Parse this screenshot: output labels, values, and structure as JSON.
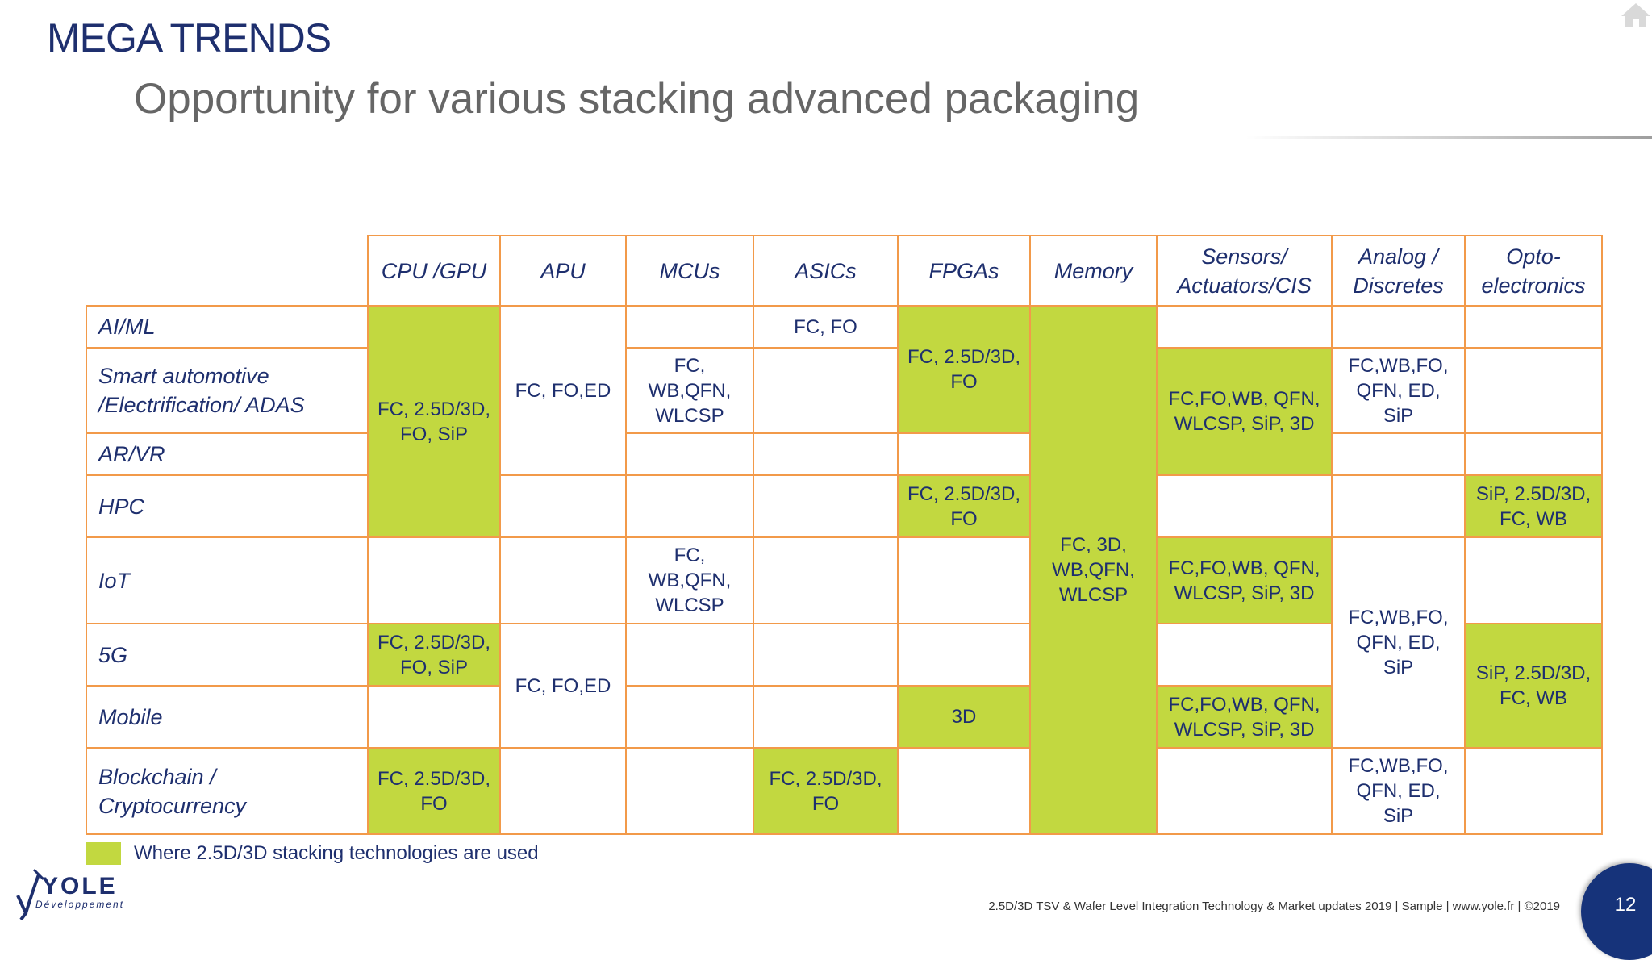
{
  "header": {
    "title": "MEGA TRENDS",
    "subtitle": "Opportunity for various stacking advanced packaging"
  },
  "table": {
    "columns": [
      "CPU /GPU",
      "APU",
      "MCUs",
      "ASICs",
      "FPGAs",
      "Memory",
      "Sensors/\nActuators/CIS",
      "Analog /\nDiscretes",
      "Opto-\nelectronics"
    ],
    "rows": [
      "AI/ML",
      "Smart automotive\n/Electrification/ ADAS",
      "AR/VR",
      "HPC",
      "IoT",
      "5G",
      "Mobile",
      "Blockchain / Cryptocurrency"
    ],
    "cells": [
      {
        "text": "FC, 2.5D/3D,\nFO, SiP",
        "stacking": true
      },
      {
        "text": "FC, FO,ED",
        "stacking": false
      },
      {
        "text": "FC, FO",
        "stacking": false
      },
      {
        "text": "FC, 2.5D/3D,\nFO",
        "stacking": true
      },
      {
        "text": "FC, 3D,\nWB,QFN,\nWLCSP",
        "stacking": true
      },
      {
        "text": "FC,\nWB,QFN,\nWLCSP",
        "stacking": false
      },
      {
        "text": "FC,FO,WB, QFN,\nWLCSP, SiP, 3D",
        "stacking": true
      },
      {
        "text": "FC,WB,FO,\nQFN, ED,\nSiP",
        "stacking": false
      },
      {
        "text": "FC, 2.5D/3D,\nFO",
        "stacking": true
      },
      {
        "text": "SiP, 2.5D/3D,\nFC, WB",
        "stacking": true
      },
      {
        "text": "FC,\nWB,QFN,\nWLCSP",
        "stacking": false
      },
      {
        "text": "FC,FO,WB, QFN,\nWLCSP, SiP, 3D",
        "stacking": true
      },
      {
        "text": "FC,WB,FO,\nQFN, ED,\nSiP",
        "stacking": false
      },
      {
        "text": "FC, 2.5D/3D,\nFO, SiP",
        "stacking": true
      },
      {
        "text": "FC, FO,ED",
        "stacking": false
      },
      {
        "text": "SiP, 2.5D/3D,\nFC, WB",
        "stacking": true
      },
      {
        "text": "3D",
        "stacking": true
      },
      {
        "text": "FC,FO,WB, QFN,\nWLCSP, SiP, 3D",
        "stacking": true
      },
      {
        "text": "FC, 2.5D/3D,\nFO",
        "stacking": true
      },
      {
        "text": "FC, 2.5D/3D,\nFO",
        "stacking": true
      },
      {
        "text": "FC,WB,FO,\nQFN, ED,\nSiP",
        "stacking": false
      }
    ]
  },
  "legend": {
    "text": "Where 2.5D/3D stacking technologies are used",
    "color": "#c2d840"
  },
  "logo": {
    "name": "YOLE",
    "subtitle": "Développement"
  },
  "footer": {
    "text": "2.5D/3D TSV & Wafer Level Integration Technology & Market updates 2019 | Sample | www.yole.fr | ©2019",
    "page_number": "12"
  },
  "colors": {
    "primary": "#1e2f6e",
    "border": "#f29a4a",
    "stacking": "#c2d840",
    "subtitle": "#666666"
  },
  "icons": {
    "home": "home-icon"
  }
}
